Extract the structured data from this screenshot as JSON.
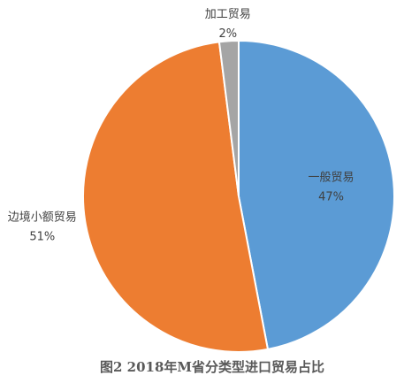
{
  "chart_data": {
    "type": "pie",
    "title": "图2  2018年M省分类型进口贸易占比",
    "categories": [
      "一般贸易",
      "边境小额贸易",
      "加工贸易"
    ],
    "values": [
      47,
      51,
      2
    ],
    "value_labels": [
      "47%",
      "51%",
      "2%"
    ],
    "colors": [
      "#5b9bd5",
      "#ed7d31",
      "#a5a5a5"
    ]
  }
}
